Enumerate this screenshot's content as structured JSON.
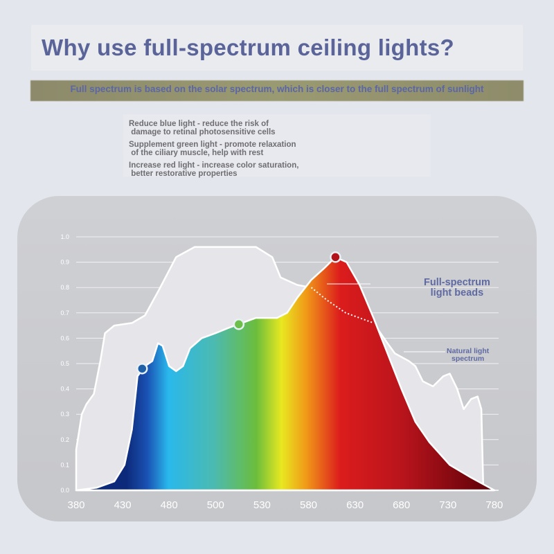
{
  "header": {
    "title": "Why use full-spectrum ceiling lights?",
    "subtitle": "Full spectrum is based on the solar spectrum, which is closer to the full spectrum of sunlight"
  },
  "benefits": [
    {
      "text": "Reduce blue light - reduce the risk of\n damage to retinal photosensitive cells"
    },
    {
      "text": "Supplement green light - promote relaxation\n of the ciliary muscle, help with rest"
    },
    {
      "text": "Increase red light - increase color saturation,\n better restorative properties"
    }
  ],
  "chart_data": {
    "type": "area",
    "x_ticks": [
      380,
      430,
      480,
      500,
      530,
      580,
      630,
      680,
      730,
      780
    ],
    "y_ticks": [
      "0.0",
      "0.1",
      "0.2",
      "0.3",
      "0.4",
      "0.5",
      "0.6",
      "0.7",
      "0.8",
      "0.9",
      "1.0"
    ],
    "ylim": [
      0,
      1
    ],
    "grid": true,
    "series": [
      {
        "name": "Natural light spectrum",
        "color": "#e6e6ea",
        "points": [
          [
            380,
            0.16
          ],
          [
            386,
            0.3
          ],
          [
            391,
            0.34
          ],
          [
            399,
            0.38
          ],
          [
            406,
            0.51
          ],
          [
            411,
            0.62
          ],
          [
            421,
            0.65
          ],
          [
            440,
            0.66
          ],
          [
            454,
            0.69
          ],
          [
            469,
            0.79
          ],
          [
            483,
            0.92
          ],
          [
            491,
            0.96
          ],
          [
            500,
            0.96
          ],
          [
            511,
            0.96
          ],
          [
            526,
            0.96
          ],
          [
            541,
            0.92
          ],
          [
            550,
            0.84
          ],
          [
            568,
            0.81
          ],
          [
            583,
            0.8
          ],
          [
            600,
            0.75
          ],
          [
            620,
            0.7
          ],
          [
            650,
            0.66
          ],
          [
            665,
            0.58
          ],
          [
            673,
            0.54
          ],
          [
            688,
            0.51
          ],
          [
            695,
            0.49
          ],
          [
            703,
            0.43
          ],
          [
            714,
            0.41
          ],
          [
            725,
            0.45
          ],
          [
            732,
            0.46
          ],
          [
            740,
            0.4
          ],
          [
            747,
            0.32
          ],
          [
            755,
            0.36
          ],
          [
            762,
            0.37
          ],
          [
            766,
            0.32
          ],
          [
            768,
            0.02
          ],
          [
            780,
            0
          ]
        ]
      },
      {
        "name": "Full-spectrum light beads",
        "points": [
          [
            380,
            0
          ],
          [
            402,
            0.01
          ],
          [
            421,
            0.035
          ],
          [
            432,
            0.1
          ],
          [
            440,
            0.24
          ],
          [
            446,
            0.45
          ],
          [
            454,
            0.49
          ],
          [
            462,
            0.51
          ],
          [
            468,
            0.58
          ],
          [
            473,
            0.57
          ],
          [
            480,
            0.49
          ],
          [
            483,
            0.47
          ],
          [
            486,
            0.49
          ],
          [
            489,
            0.56
          ],
          [
            494,
            0.6
          ],
          [
            500,
            0.62
          ],
          [
            508,
            0.64
          ],
          [
            517,
            0.66
          ],
          [
            526,
            0.68
          ],
          [
            546,
            0.68
          ],
          [
            557,
            0.7
          ],
          [
            568,
            0.76
          ],
          [
            583,
            0.83
          ],
          [
            598,
            0.88
          ],
          [
            609,
            0.92
          ],
          [
            621,
            0.9
          ],
          [
            635,
            0.81
          ],
          [
            650,
            0.68
          ],
          [
            665,
            0.54
          ],
          [
            680,
            0.4
          ],
          [
            695,
            0.27
          ],
          [
            710,
            0.19
          ],
          [
            732,
            0.1
          ],
          [
            755,
            0.05
          ],
          [
            780,
            0
          ]
        ]
      }
    ],
    "markers": [
      {
        "x": 451,
        "y": 0.48,
        "color": "#1e5fa8"
      },
      {
        "x": 515,
        "y": 0.655,
        "color": "#6cbf4a"
      },
      {
        "x": 609,
        "y": 0.92,
        "color": "#b3121a"
      }
    ],
    "legend": {
      "beads": "Full-spectrum\nlight beads",
      "natural": "Natural light\nspectrum"
    }
  }
}
